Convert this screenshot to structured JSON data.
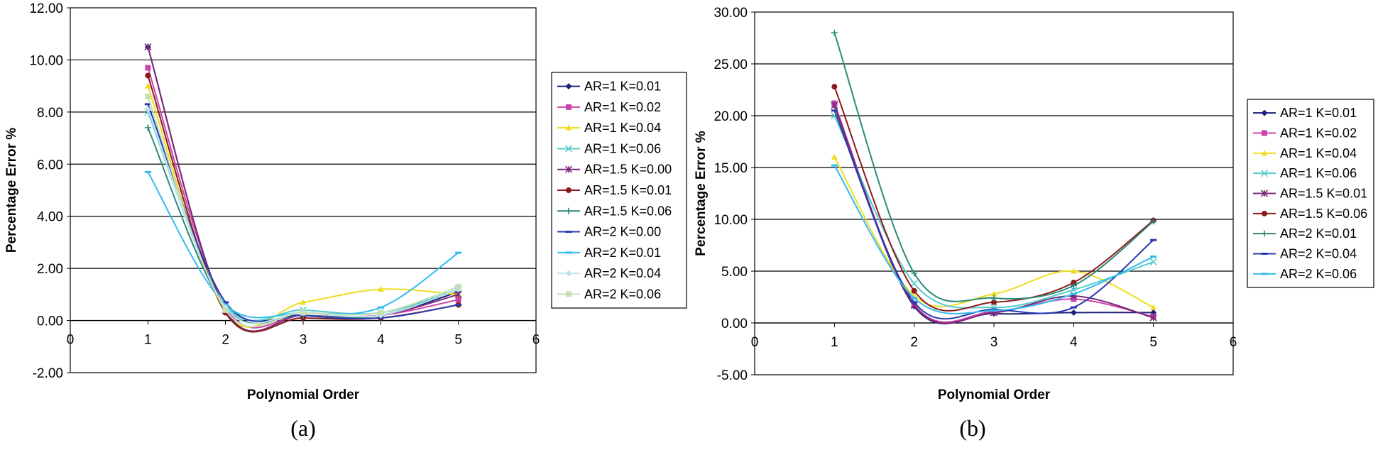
{
  "chart_data": [
    {
      "type": "line",
      "caption": "(a)",
      "xlabel": "Polynomial Order",
      "ylabel": "Percentage Error %",
      "xlim": [
        0,
        6
      ],
      "ylim": [
        -2,
        12
      ],
      "xticks": [
        0,
        1,
        2,
        3,
        4,
        5,
        6
      ],
      "yticks": [
        -2,
        0,
        2,
        4,
        6,
        8,
        10,
        12
      ],
      "ytick_labels": [
        "-2.00",
        "0.00",
        "2.00",
        "4.00",
        "6.00",
        "8.00",
        "10.00",
        "12.00"
      ],
      "grid": "horizontal",
      "legend": "right",
      "x": [
        1,
        2,
        3,
        4,
        5
      ],
      "series": [
        {
          "name": "AR=1 K=0.01",
          "color": "#1f1f7a",
          "marker": "diamond",
          "values": [
            10.5,
            0.4,
            0.2,
            0.2,
            1.1
          ]
        },
        {
          "name": "AR=1 K=0.02",
          "color": "#cc44aa",
          "marker": "square",
          "values": [
            9.7,
            0.5,
            0.2,
            0.2,
            0.8
          ]
        },
        {
          "name": "AR=1 K=0.04",
          "color": "#eedd22",
          "marker": "triangle",
          "values": [
            9.0,
            0.3,
            0.7,
            1.2,
            1.0
          ]
        },
        {
          "name": "AR=1 K=0.06",
          "color": "#55cccc",
          "marker": "x",
          "values": [
            8.0,
            0.6,
            0.4,
            0.3,
            1.2
          ]
        },
        {
          "name": "AR=1.5 K=0.00",
          "color": "#7a2a7a",
          "marker": "star",
          "values": [
            10.5,
            0.4,
            0.2,
            0.2,
            1.0
          ]
        },
        {
          "name": "AR=1.5 K=0.01",
          "color": "#8b1a1a",
          "marker": "circle",
          "values": [
            9.4,
            0.3,
            0.1,
            0.1,
            0.6
          ]
        },
        {
          "name": "AR=1.5 K=0.06",
          "color": "#2a8a7a",
          "marker": "plus",
          "values": [
            7.4,
            0.5,
            0.2,
            0.2,
            1.2
          ]
        },
        {
          "name": "AR=2 K=0.00",
          "color": "#2a3ab0",
          "marker": "dash",
          "values": [
            8.3,
            0.7,
            0.2,
            0.1,
            0.6
          ]
        },
        {
          "name": "AR=2 K=0.01",
          "color": "#33bbee",
          "marker": "dash",
          "values": [
            5.7,
            0.6,
            0.3,
            0.5,
            2.6
          ]
        },
        {
          "name": "AR=2 K=0.04",
          "color": "#bbe4ee",
          "marker": "diamond",
          "values": [
            8.1,
            0.5,
            0.3,
            0.2,
            1.2
          ]
        },
        {
          "name": "AR=2 K=0.06",
          "color": "#c4e0b8",
          "marker": "square",
          "values": [
            8.6,
            0.4,
            0.3,
            0.3,
            1.3
          ]
        }
      ]
    },
    {
      "type": "line",
      "caption": "(b)",
      "xlabel": "Polynomial Order",
      "ylabel": "Percentage Error %",
      "xlim": [
        0,
        6
      ],
      "ylim": [
        -5,
        30
      ],
      "xticks": [
        0,
        1,
        2,
        3,
        4,
        5,
        6
      ],
      "yticks": [
        -5,
        0,
        5,
        10,
        15,
        20,
        25,
        30
      ],
      "ytick_labels": [
        "-5.00",
        "0.00",
        "5.00",
        "10.00",
        "15.00",
        "20.00",
        "25.00",
        "30.00"
      ],
      "grid": "horizontal",
      "legend": "right",
      "x": [
        1,
        2,
        3,
        4,
        5
      ],
      "series": [
        {
          "name": "AR=1 K=0.01",
          "color": "#1f1f7a",
          "marker": "diamond",
          "values": [
            21.0,
            1.6,
            0.9,
            1.0,
            1.0
          ]
        },
        {
          "name": "AR=1 K=0.02",
          "color": "#cc44aa",
          "marker": "square",
          "values": [
            21.2,
            1.8,
            1.1,
            2.3,
            0.6
          ]
        },
        {
          "name": "AR=1 K=0.04",
          "color": "#eedd22",
          "marker": "triangle",
          "values": [
            16.0,
            2.6,
            2.8,
            5.0,
            1.5
          ]
        },
        {
          "name": "AR=1 K=0.06",
          "color": "#55cccc",
          "marker": "x",
          "values": [
            20.0,
            3.8,
            1.5,
            3.2,
            5.9
          ]
        },
        {
          "name": "AR=1.5 K=0.01",
          "color": "#7a2a7a",
          "marker": "star",
          "values": [
            21.0,
            1.7,
            1.0,
            2.6,
            0.5
          ]
        },
        {
          "name": "AR=1.5 K=0.06",
          "color": "#8b1a1a",
          "marker": "circle",
          "values": [
            22.8,
            3.1,
            2.0,
            3.9,
            9.9
          ]
        },
        {
          "name": "AR=2 K=0.01",
          "color": "#2a8a7a",
          "marker": "plus",
          "values": [
            28.0,
            4.8,
            2.4,
            3.6,
            9.8
          ]
        },
        {
          "name": "AR=2 K=0.04",
          "color": "#2a3ab0",
          "marker": "dash",
          "values": [
            20.5,
            2.0,
            1.3,
            1.5,
            8.0
          ]
        },
        {
          "name": "AR=2 K=0.06",
          "color": "#33bbee",
          "marker": "dash",
          "values": [
            15.2,
            2.4,
            1.2,
            2.8,
            6.4
          ]
        }
      ]
    }
  ]
}
